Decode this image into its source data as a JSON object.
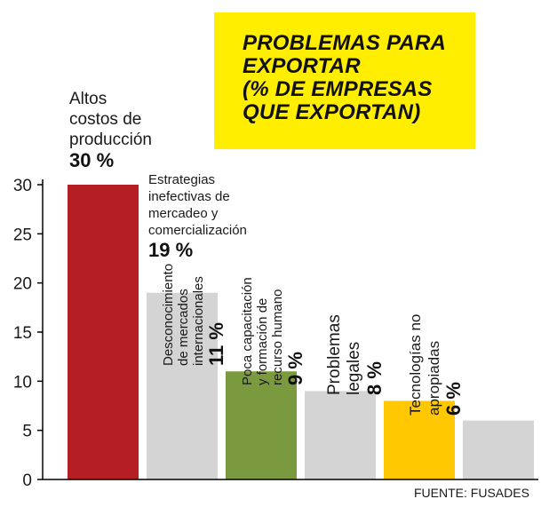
{
  "header": {
    "title_lines": [
      "PROBLEMAS PARA",
      "EXPORTAR",
      "(% DE EMPRESAS",
      "QUE EXPORTAN)"
    ]
  },
  "source": "FUENTE: FUSADES",
  "colors": {
    "red": "#b51f24",
    "gray": "#d4d4d4",
    "green": "#7b9a3f",
    "gold": "#ffc800",
    "title_box": "#ffee00"
  },
  "chart_data": {
    "type": "bar",
    "categories": [
      "Altos costos de producción",
      "Estrategias inefectivas de mercadeo y comercialización",
      "Desconocimiento de mercados internacionales",
      "Poca capacitación y formación de recurso humano",
      "Problemas legales",
      "Tecnologías no apropiadas"
    ],
    "values": [
      30,
      19,
      11,
      9,
      8,
      6
    ],
    "data_labels": [
      "30 %",
      "19 %",
      "11 %",
      "9 %",
      "8 %",
      "6 %"
    ],
    "label_lines": [
      [
        "Altos",
        "costos de",
        "producción"
      ],
      [
        "Estrategias",
        "inefectivas de",
        "mercadeo y",
        "comercialización"
      ],
      [
        "Desconocimiento",
        "de mercados",
        "internacionales"
      ],
      [
        "Poca capacitación",
        "y formación de",
        "recurso humano"
      ],
      [
        "Problemas",
        "legales"
      ],
      [
        "Tecnologías no",
        "apropiadas"
      ]
    ],
    "bar_colors": [
      "#b51f24",
      "#d4d4d4",
      "#7b9a3f",
      "#d4d4d4",
      "#ffc800",
      "#d4d4d4"
    ],
    "y_ticks": [
      0,
      5,
      10,
      15,
      20,
      25,
      30
    ],
    "ylim": [
      0,
      30
    ],
    "title": "PROBLEMAS PARA EXPORTAR (% DE EMPRESAS QUE EXPORTAN)",
    "xlabel": "",
    "ylabel": "",
    "grid": false
  }
}
